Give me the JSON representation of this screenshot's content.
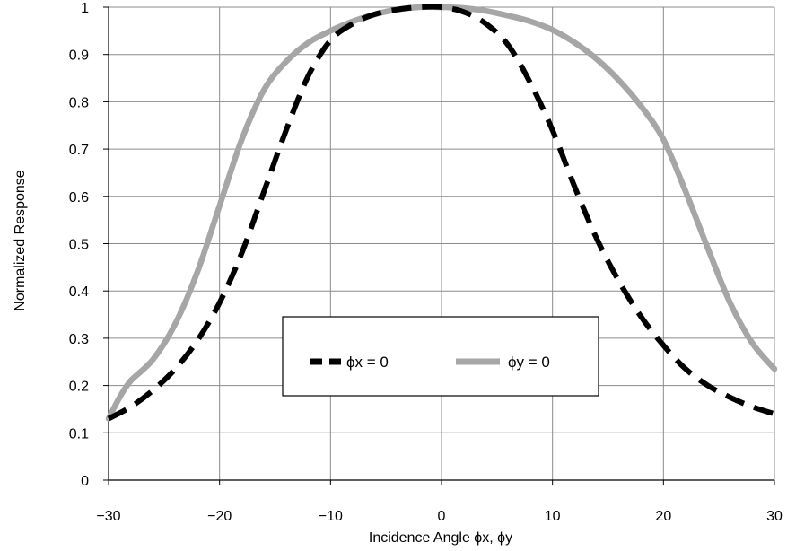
{
  "chart_data": {
    "type": "line",
    "xlabel": "Incidence Angle ϕx, ϕy",
    "ylabel": "Normalized Response",
    "xlim": [
      -30,
      30
    ],
    "ylim": [
      0,
      1
    ],
    "xticks": [
      -30,
      -20,
      -10,
      0,
      10,
      20,
      30
    ],
    "xtick_labels": [
      "−30",
      "−20",
      "−10",
      "0",
      "10",
      "20",
      "30"
    ],
    "yticks": [
      0,
      0.1,
      0.2,
      0.3,
      0.4,
      0.5,
      0.6,
      0.7,
      0.8,
      0.9,
      1
    ],
    "ytick_labels": [
      "0",
      "0.1",
      "0.2",
      "0.3",
      "0.4",
      "0.5",
      "0.6",
      "0.7",
      "0.8",
      "0.9",
      "1"
    ],
    "grid": true,
    "legend_position": "center-bottom",
    "series": [
      {
        "name": "ϕx = 0",
        "color": "#000000",
        "style": "dashed",
        "x": [
          -30,
          -28,
          -26,
          -24,
          -22,
          -20,
          -18,
          -16,
          -14,
          -12,
          -10,
          -8,
          -6,
          -4,
          -2,
          0,
          2,
          4,
          6,
          8,
          10,
          12,
          14,
          16,
          18,
          20,
          22,
          24,
          26,
          28,
          30
        ],
        "y": [
          0.13,
          0.155,
          0.19,
          0.235,
          0.295,
          0.375,
          0.48,
          0.61,
          0.74,
          0.855,
          0.93,
          0.965,
          0.985,
          0.995,
          1.0,
          1.0,
          0.99,
          0.965,
          0.92,
          0.84,
          0.74,
          0.62,
          0.51,
          0.42,
          0.345,
          0.285,
          0.235,
          0.2,
          0.175,
          0.155,
          0.14
        ]
      },
      {
        "name": "ϕy = 0",
        "color": "#a6a6a6",
        "style": "solid",
        "x": [
          -30,
          -29,
          -28,
          -26,
          -24,
          -22,
          -20,
          -18,
          -16,
          -14,
          -12,
          -10,
          -8,
          -6,
          -4,
          -2,
          0,
          2,
          4,
          6,
          8,
          10,
          12,
          14,
          16,
          18,
          20,
          22,
          24,
          26,
          28,
          30
        ],
        "y": [
          0.13,
          0.175,
          0.21,
          0.255,
          0.33,
          0.44,
          0.58,
          0.72,
          0.825,
          0.885,
          0.925,
          0.95,
          0.97,
          0.985,
          0.995,
          1.0,
          1.0,
          0.998,
          0.992,
          0.982,
          0.97,
          0.952,
          0.925,
          0.89,
          0.845,
          0.79,
          0.72,
          0.61,
          0.49,
          0.375,
          0.29,
          0.235
        ]
      }
    ]
  }
}
